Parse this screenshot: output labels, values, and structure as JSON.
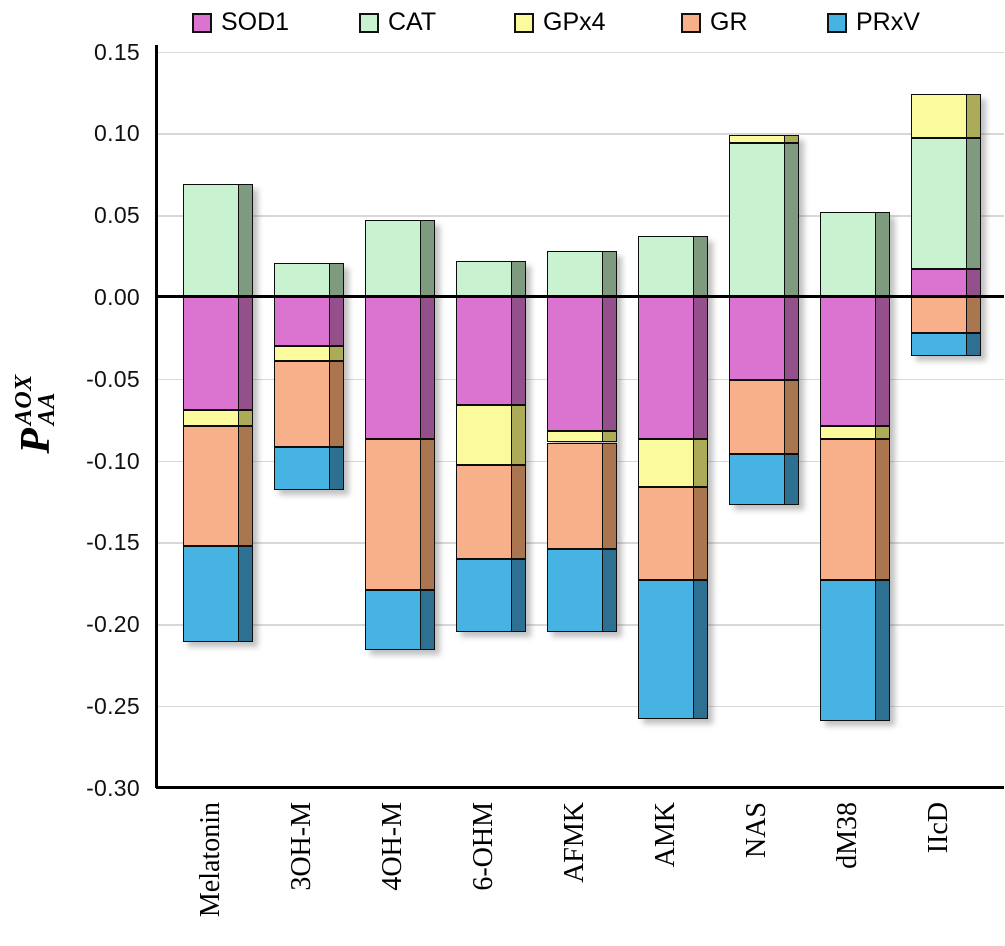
{
  "chart_data": {
    "type": "bar",
    "stacked": true,
    "orientation": "vertical",
    "ylabel": {
      "base": "P",
      "sup": "AOX",
      "sub": "AA"
    },
    "categories": [
      "Melatonin",
      "3OH-M",
      "4OH-M",
      "6-OHM",
      "AFMK",
      "AMK",
      "NAS",
      "dM38",
      "IIcD"
    ],
    "series": [
      {
        "name": "SOD1",
        "color": "#DB73D1",
        "side_color": "#93508B",
        "values": [
          -0.069,
          -0.03,
          -0.087,
          -0.066,
          -0.082,
          -0.087,
          -0.051,
          -0.079,
          0.017
        ]
      },
      {
        "name": "CAT",
        "color": "#C9F2D1",
        "side_color": "#7E9B80",
        "values": [
          0.069,
          0.021,
          0.047,
          0.022,
          0.028,
          0.037,
          0.094,
          0.052,
          0.08
        ]
      },
      {
        "name": "GPx4",
        "color": "#FBFB9E",
        "side_color": "#ABAB58",
        "values": [
          -0.01,
          -0.009,
          0,
          -0.037,
          -0.007,
          -0.029,
          0.005,
          -0.008,
          0.027
        ]
      },
      {
        "name": "GR",
        "color": "#F7B08A",
        "side_color": "#A9764F",
        "values": [
          -0.073,
          -0.053,
          -0.092,
          -0.057,
          -0.065,
          -0.057,
          -0.045,
          -0.086,
          -0.022
        ]
      },
      {
        "name": "PRxV",
        "color": "#47B3E2",
        "side_color": "#2D7092",
        "values": [
          -0.059,
          -0.026,
          -0.037,
          -0.045,
          -0.051,
          -0.085,
          -0.031,
          -0.086,
          -0.014
        ]
      }
    ],
    "ylim": [
      -0.3,
      0.15
    ],
    "ytick_step": 0.05,
    "ytick_labels": [
      "0.15",
      "0.10",
      "0.05",
      "0.00",
      "-0.05",
      "-0.10",
      "-0.15",
      "-0.20",
      "-0.25",
      "-0.30"
    ],
    "grid": true,
    "legend_position": "top",
    "axis_color": "#000000",
    "grid_color": "#D8D8D8"
  }
}
